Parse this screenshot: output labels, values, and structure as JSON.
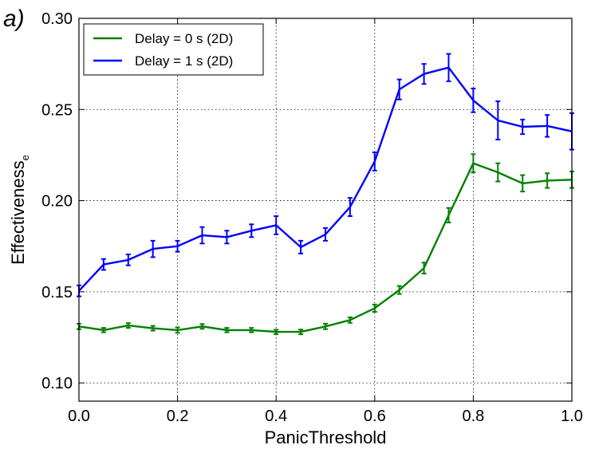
{
  "panel_label": "a)",
  "chart_data": {
    "type": "line",
    "title": "",
    "xlabel": "PanicThreshold",
    "ylabel_main": "Effectiveness",
    "ylabel_sub": "e",
    "xlim": [
      0.0,
      1.0
    ],
    "ylim": [
      0.09,
      0.3
    ],
    "xticks": [
      "0.0",
      "0.2",
      "0.4",
      "0.6",
      "0.8",
      "1.0"
    ],
    "yticks": [
      "0.10",
      "0.15",
      "0.20",
      "0.25",
      "0.30"
    ],
    "grid": true,
    "legend_position": "upper-left",
    "x": [
      0.0,
      0.05,
      0.1,
      0.15,
      0.2,
      0.25,
      0.3,
      0.35,
      0.4,
      0.45,
      0.5,
      0.55,
      0.6,
      0.65,
      0.7,
      0.75,
      0.8,
      0.85,
      0.9,
      0.95,
      1.0
    ],
    "series": [
      {
        "name": "Delay = 0 s (2D)",
        "color": "#008000",
        "values": [
          0.131,
          0.129,
          0.1315,
          0.13,
          0.129,
          0.131,
          0.129,
          0.129,
          0.128,
          0.128,
          0.131,
          0.1345,
          0.141,
          0.151,
          0.163,
          0.192,
          0.2205,
          0.2155,
          0.2095,
          0.211,
          0.2115
        ],
        "errors": [
          0.0015,
          0.0012,
          0.0013,
          0.0013,
          0.0015,
          0.0013,
          0.0012,
          0.0012,
          0.0012,
          0.0013,
          0.0015,
          0.0015,
          0.002,
          0.0022,
          0.003,
          0.004,
          0.005,
          0.005,
          0.0045,
          0.004,
          0.0045
        ]
      },
      {
        "name": "Delay = 1 s (2D)",
        "color": "#0000ff",
        "values": [
          0.1505,
          0.165,
          0.1675,
          0.1735,
          0.175,
          0.181,
          0.18,
          0.1835,
          0.1865,
          0.1745,
          0.1815,
          0.1965,
          0.2215,
          0.261,
          0.2695,
          0.273,
          0.255,
          0.244,
          0.2405,
          0.241,
          0.238
        ],
        "errors": [
          0.003,
          0.003,
          0.003,
          0.0045,
          0.003,
          0.0045,
          0.0035,
          0.0035,
          0.005,
          0.0035,
          0.0035,
          0.005,
          0.005,
          0.0055,
          0.0055,
          0.0075,
          0.0065,
          0.0105,
          0.004,
          0.006,
          0.01
        ]
      }
    ]
  }
}
